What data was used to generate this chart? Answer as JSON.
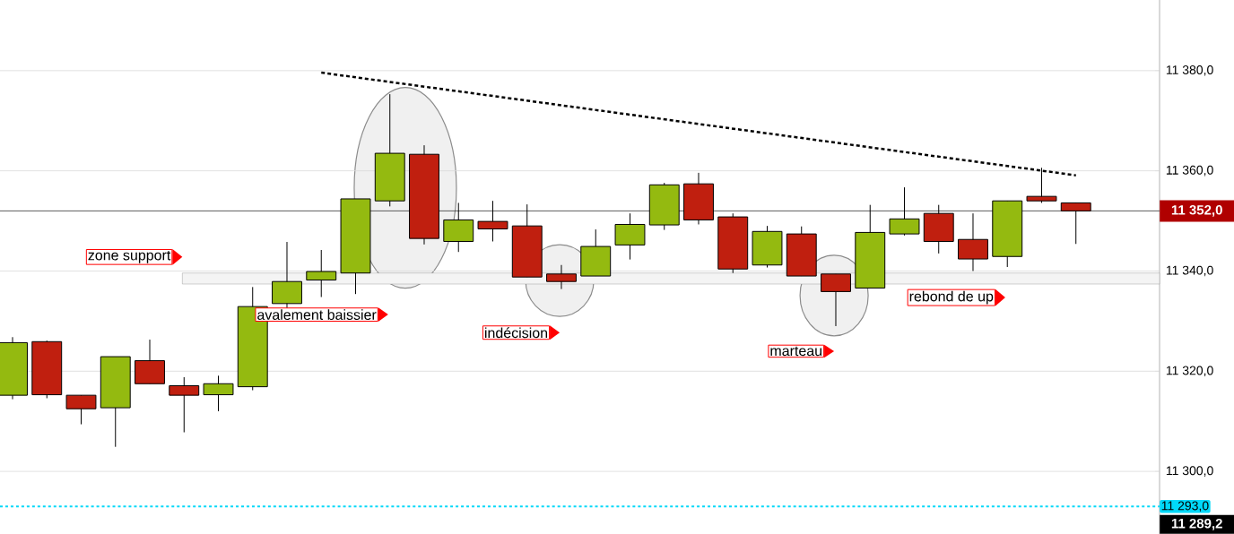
{
  "chart_data": {
    "type": "candlestick",
    "categories": [
      null,
      null,
      null,
      null,
      null,
      null,
      null,
      null,
      null,
      null,
      null,
      null,
      null,
      null,
      null,
      null,
      null,
      null,
      null,
      null,
      null,
      null,
      null,
      null,
      null,
      null,
      null,
      null,
      null,
      null,
      null,
      null
    ],
    "ohlc": [
      [
        11315.2,
        11326.8,
        11314.4,
        11325.7
      ],
      [
        11325.9,
        11326.1,
        11314.6,
        11315.3
      ],
      [
        11315.2,
        11315.2,
        11309.4,
        11312.5
      ],
      [
        11312.7,
        11322.9,
        11304.9,
        11322.9
      ],
      [
        11322.1,
        11326.3,
        11317.5,
        11317.5
      ],
      [
        11317.1,
        11318.8,
        11307.8,
        11315.2
      ],
      [
        11315.3,
        11319.1,
        11312.0,
        11317.5
      ],
      [
        11316.9,
        11336.8,
        11316.2,
        11332.9
      ],
      [
        11333.5,
        11345.8,
        11332.5,
        11337.9
      ],
      [
        11338.2,
        11344.2,
        11334.8,
        11339.9
      ],
      [
        11339.6,
        11354.4,
        11335.4,
        11354.4
      ],
      [
        11354.0,
        11375.3,
        11352.9,
        11363.5
      ],
      [
        11363.3,
        11365.1,
        11345.3,
        11346.5
      ],
      [
        11345.9,
        11353.6,
        11343.8,
        11350.2
      ],
      [
        11349.9,
        11354.0,
        11345.9,
        11348.4
      ],
      [
        11349.0,
        11353.3,
        11338.8,
        11338.8
      ],
      [
        11339.4,
        11341.2,
        11336.4,
        11337.9
      ],
      [
        11339.0,
        11348.3,
        11339.0,
        11344.9
      ],
      [
        11345.2,
        11351.5,
        11342.3,
        11349.3
      ],
      [
        11349.2,
        11357.6,
        11348.2,
        11357.2
      ],
      [
        11357.4,
        11359.6,
        11349.3,
        11350.2
      ],
      [
        11350.8,
        11351.5,
        11339.6,
        11340.4
      ],
      [
        11341.2,
        11349.0,
        11340.7,
        11347.9
      ],
      [
        11347.4,
        11348.9,
        11339.0,
        11339.0
      ],
      [
        11339.4,
        11339.4,
        11329.0,
        11335.9
      ],
      [
        11336.6,
        11353.2,
        11336.6,
        11347.7
      ],
      [
        11347.4,
        11356.7,
        11347.1,
        11350.4
      ],
      [
        11351.5,
        11353.2,
        11343.5,
        11345.9
      ],
      [
        11346.3,
        11351.5,
        11340.0,
        11342.4
      ],
      [
        11342.9,
        11354.0,
        11340.8,
        11354.0
      ],
      [
        11354.9,
        11360.6,
        11353.6,
        11354.0
      ],
      [
        11353.6,
        11353.6,
        11345.4,
        11352.0
      ]
    ],
    "colors": [
      "#94ba10",
      "#c01f0f",
      "#c01f0f",
      "#94ba10",
      "#c01f0f",
      "#c01f0f",
      "#94ba10",
      "#94ba10",
      "#94ba10",
      "#94ba10",
      "#94ba10",
      "#94ba10",
      "#c01f0f",
      "#94ba10",
      "#c01f0f",
      "#c01f0f",
      "#c01f0f",
      "#94ba10",
      "#94ba10",
      "#94ba10",
      "#c01f0f",
      "#c01f0f",
      "#94ba10",
      "#c01f0f",
      "#c01f0f",
      "#94ba10",
      "#94ba10",
      "#c01f0f",
      "#c01f0f",
      "#94ba10",
      "#c01f0f",
      "#c01f0f"
    ],
    "series": [
      {
        "type": "line",
        "values": [
          null,
          null,
          null,
          null,
          null,
          null,
          null,
          null,
          null,
          11379.6,
          null,
          null,
          null,
          null,
          null,
          null,
          null,
          null,
          null,
          null,
          null,
          null,
          null,
          null,
          null,
          null,
          null,
          null,
          null,
          null,
          null,
          11359.1
        ],
        "color": "#000000",
        "line_style": "dotted"
      }
    ],
    "ylim": [
      11287.5,
      11394.1
    ],
    "yticks": [
      {
        "value": 11300,
        "label": "11 300,0"
      },
      {
        "value": 11320,
        "label": "11 320,0"
      },
      {
        "value": 11340,
        "label": "11 340,0"
      },
      {
        "value": 11360,
        "label": "11 360,0"
      },
      {
        "value": 11380,
        "label": "11 380,0"
      }
    ],
    "grid": "y",
    "ref_lines": [
      {
        "axis": "y",
        "value": 11352.0,
        "label": "11 352,0",
        "color": "#333333"
      },
      {
        "axis": "y",
        "value": 11293.0,
        "label": "11 293,0",
        "color": "#00d8f8",
        "line_style": "dashed"
      }
    ],
    "bands": [
      {
        "axis": "y",
        "from": 11337.4,
        "to": 11339.6,
        "label": "zone support",
        "color": "#f4f4f4"
      }
    ],
    "annotations": [
      "avalement baissier",
      "indécision",
      "marteau",
      "rebond de up",
      "11 289,2"
    ]
  }
}
